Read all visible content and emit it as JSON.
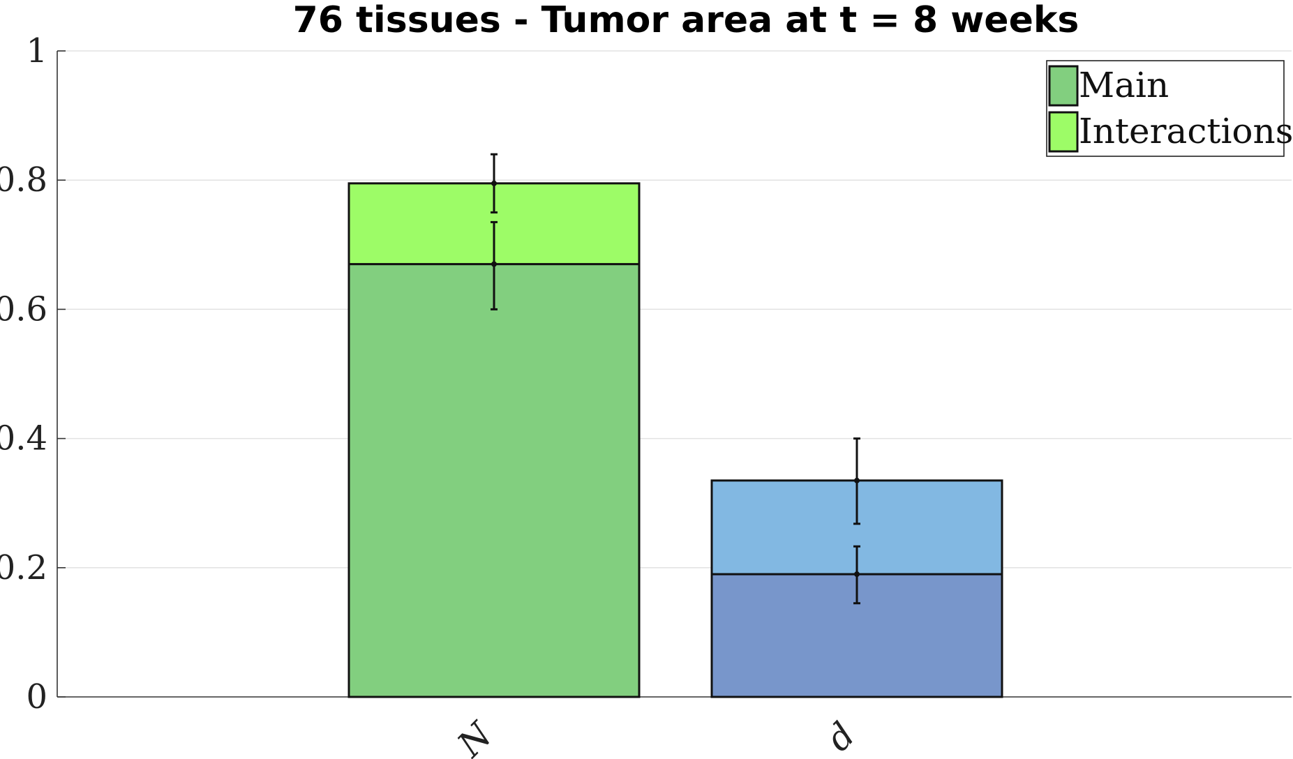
{
  "chart_data": {
    "type": "bar",
    "stacked": true,
    "title": "76 tissues - Tumor area at t = 8 weeks",
    "xlabel": "",
    "ylabel": "",
    "ylim": [
      0,
      1
    ],
    "yticks": [
      {
        "value": 0,
        "label": "0"
      },
      {
        "value": 0.2,
        "label": "0.2"
      },
      {
        "value": 0.4,
        "label": "0.4"
      },
      {
        "value": 0.6,
        "label": "0.6"
      },
      {
        "value": 0.8,
        "label": "0.8"
      },
      {
        "value": 1,
        "label": "1"
      }
    ],
    "grid": true,
    "legend_position": "top-right",
    "legend": [
      {
        "label": "Main",
        "color": "#82cf7f"
      },
      {
        "label": "Interactions",
        "color": "#9dfc67"
      }
    ],
    "categories": [
      "N",
      "d"
    ],
    "bars": [
      {
        "category": "N",
        "main": 0.67,
        "main_err_low": 0.6,
        "main_err_high": 0.735,
        "total": 0.795,
        "total_err_low": 0.75,
        "total_err_high": 0.84,
        "main_color": "#82cf7f",
        "interactions_color": "#9dfc67"
      },
      {
        "category": "d",
        "main": 0.19,
        "main_err_low": 0.145,
        "main_err_high": 0.233,
        "total": 0.335,
        "total_err_low": 0.268,
        "total_err_high": 0.4,
        "main_color": "#7896cb",
        "interactions_color": "#82b8e2"
      }
    ]
  }
}
